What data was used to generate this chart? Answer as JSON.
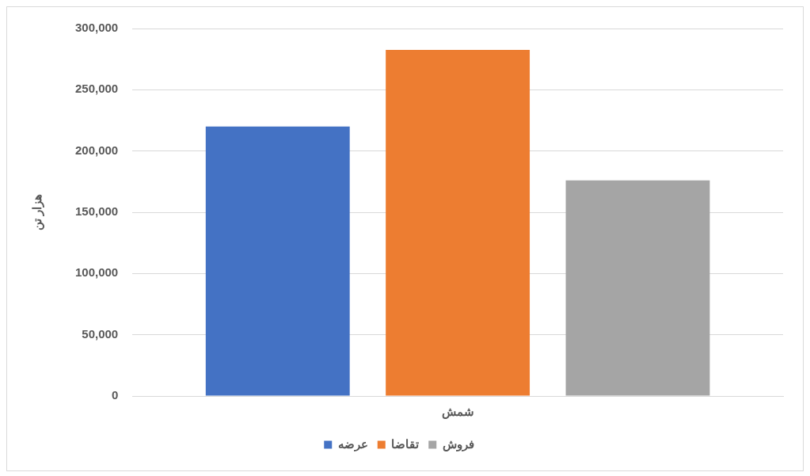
{
  "chart_data": {
    "type": "bar",
    "ylabel": "هزار تن",
    "categories": [
      "شمش"
    ],
    "series": [
      {
        "name": "عرضه",
        "color": "#4472c4",
        "values": [
          220000
        ]
      },
      {
        "name": "تقاضا",
        "color": "#ed7d31",
        "values": [
          282500
        ]
      },
      {
        "name": "فروش",
        "color": "#a5a5a5",
        "values": [
          176000
        ]
      }
    ],
    "ylim": [
      0,
      300000
    ],
    "yticks": [
      0,
      {
        "value": 50000,
        "label": "50,000"
      },
      {
        "value": 100000,
        "label": "100,000"
      },
      {
        "value": 150000,
        "label": "150,000"
      },
      {
        "value": 200000,
        "label": "200,000"
      },
      {
        "value": 250000,
        "label": "250,000"
      },
      {
        "value": 300000,
        "label": "300,000"
      }
    ],
    "grid": "y",
    "legend": "bottom"
  }
}
